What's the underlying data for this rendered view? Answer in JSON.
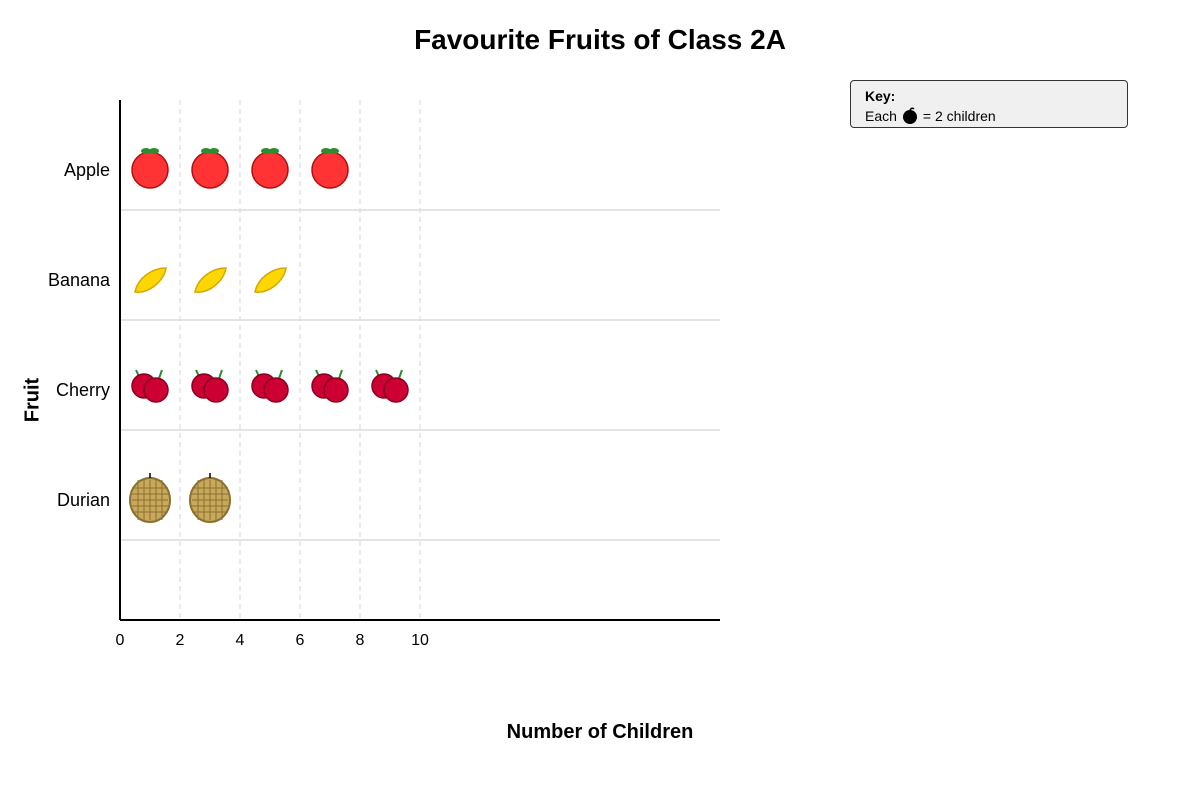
{
  "chart_data": {
    "type": "pictograph",
    "title": "Favourite Fruits of Class 2A",
    "xlabel": "Number of Children",
    "ylabel": "Fruit",
    "categories": [
      "Apple",
      "Banana",
      "Cherry",
      "Durian"
    ],
    "values": [
      8,
      6,
      10,
      4
    ],
    "icons_per_category": [
      4,
      3,
      5,
      2
    ],
    "icon_names": [
      "apple-icon",
      "banana-icon",
      "cherry-icon",
      "durian-icon"
    ],
    "units_per_icon": 2,
    "x_ticks": [
      "0",
      "2",
      "4",
      "6",
      "8",
      "10"
    ],
    "xlim": [
      0,
      20
    ],
    "grid": "vertical dashed at each tick, horizontal lines between rows",
    "colors": {
      "apple": "#ff3333",
      "banana": "#ffd700",
      "cherry": "#cc0033",
      "durian": "#c8a85a",
      "stem": "#2e8b2e"
    }
  },
  "key": {
    "title": "Key:",
    "prefix": "Each",
    "suffix": "= 2 children",
    "icon": "apple-icon"
  }
}
